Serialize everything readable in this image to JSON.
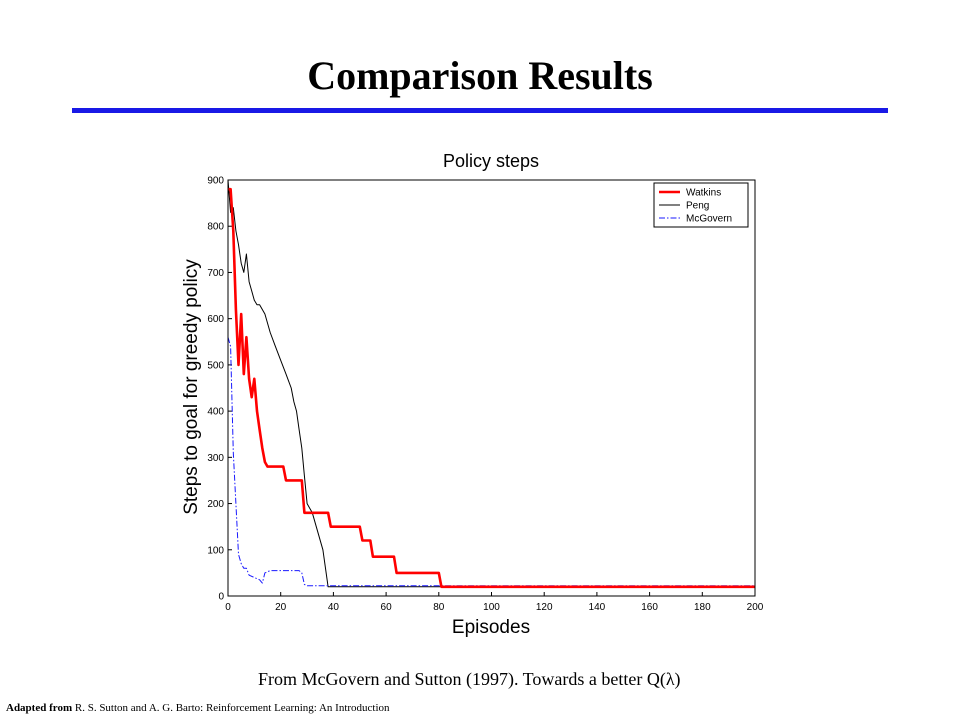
{
  "slide": {
    "title": "Comparison Results",
    "caption": "From McGovern and Sutton (1997).  Towards a better Q(λ)",
    "credit_prefix": "Adapted from",
    "credit_text": " R. S. Sutton and A. G. Barto: Reinforcement Learning: An Introduction",
    "rule_color": "#1919e6"
  },
  "chart_data": {
    "type": "line",
    "title": "Policy steps",
    "xlabel": "Episodes",
    "ylabel": "Steps to goal for greedy policy",
    "xlim": [
      0,
      200
    ],
    "ylim": [
      0,
      900
    ],
    "xticks": [
      0,
      20,
      40,
      60,
      80,
      100,
      120,
      140,
      160,
      180,
      200
    ],
    "yticks": [
      0,
      100,
      200,
      300,
      400,
      500,
      600,
      700,
      800,
      900
    ],
    "grid": false,
    "legend_position": "top-right",
    "series": [
      {
        "name": "Watkins",
        "color": "#ff0000",
        "style": "solid-thick",
        "x": [
          0,
          1,
          2,
          3,
          4,
          5,
          6,
          7,
          8,
          9,
          10,
          11,
          12,
          13,
          14,
          15,
          18,
          19,
          21,
          22,
          25,
          26,
          28,
          29,
          38,
          39,
          50,
          51,
          54,
          55,
          63,
          64,
          80,
          81,
          200
        ],
        "y": [
          880,
          880,
          790,
          620,
          500,
          610,
          480,
          560,
          470,
          430,
          470,
          400,
          360,
          320,
          290,
          280,
          280,
          280,
          280,
          250,
          250,
          250,
          250,
          180,
          180,
          150,
          150,
          120,
          120,
          85,
          85,
          50,
          50,
          20,
          20
        ]
      },
      {
        "name": "Peng",
        "color": "#000000",
        "style": "solid-thin",
        "x": [
          0,
          1,
          2,
          3,
          4,
          5,
          6,
          7,
          8,
          9,
          10,
          11,
          12,
          14,
          16,
          18,
          20,
          22,
          24,
          25,
          26,
          27,
          28,
          29,
          30,
          32,
          34,
          36,
          37,
          38,
          39,
          200
        ],
        "y": [
          900,
          830,
          840,
          790,
          760,
          720,
          700,
          740,
          680,
          660,
          640,
          630,
          630,
          610,
          570,
          540,
          510,
          480,
          450,
          420,
          400,
          360,
          320,
          260,
          200,
          180,
          140,
          100,
          60,
          20,
          20,
          20
        ]
      },
      {
        "name": "McGovern",
        "color": "#1a1aff",
        "style": "dash-dot",
        "x": [
          0,
          1,
          2,
          3,
          4,
          5,
          6,
          7,
          8,
          10,
          12,
          13,
          14,
          16,
          18,
          20,
          22,
          25,
          27,
          28,
          29,
          30,
          200
        ],
        "y": [
          560,
          540,
          310,
          200,
          90,
          70,
          60,
          60,
          45,
          40,
          35,
          28,
          50,
          55,
          55,
          55,
          55,
          55,
          55,
          50,
          25,
          22,
          22
        ]
      }
    ]
  }
}
